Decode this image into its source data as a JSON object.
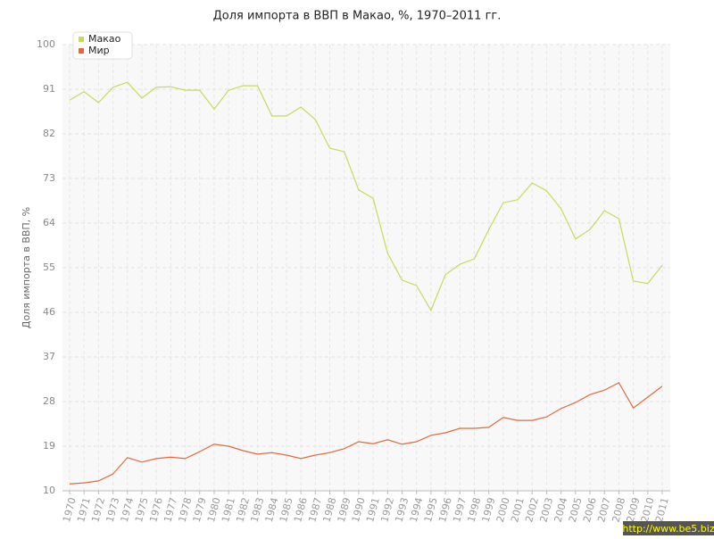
{
  "chart_data": {
    "type": "line",
    "title": "Доля импорта в ВВП в Макао, %, 1970–2011 гг.",
    "y_label": "Доля импорта в ВВП, %",
    "categories": [
      "1970",
      "1971",
      "1972",
      "1973",
      "1974",
      "1975",
      "1976",
      "1977",
      "1978",
      "1979",
      "1980",
      "1981",
      "1982",
      "1983",
      "1984",
      "1985",
      "1986",
      "1987",
      "1988",
      "1989",
      "1990",
      "1991",
      "1992",
      "1993",
      "1994",
      "1995",
      "1996",
      "1997",
      "1998",
      "1999",
      "2000",
      "2001",
      "2002",
      "2003",
      "2004",
      "2005",
      "2006",
      "2007",
      "2008",
      "2009",
      "2010",
      "2011"
    ],
    "series": [
      {
        "name": "Макао",
        "color": "#c3dc5a",
        "values": [
          88.8,
          90.5,
          88.3,
          91.4,
          92.4,
          89.2,
          91.4,
          91.5,
          90.8,
          90.8,
          87.0,
          90.8,
          91.7,
          91.7,
          85.6,
          85.6,
          87.4,
          84.9,
          79.1,
          78.4,
          70.7,
          69.0,
          57.9,
          52.5,
          51.4,
          46.4,
          53.6,
          55.7,
          56.8,
          62.7,
          68.1,
          68.7,
          72.1,
          70.5,
          66.9,
          60.8,
          62.7,
          66.5,
          64.9,
          52.3,
          51.8,
          55.5
        ]
      },
      {
        "name": "Мир",
        "color": "#e06a3c",
        "values": [
          11.4,
          11.6,
          12.0,
          13.4,
          16.7,
          15.8,
          16.5,
          16.8,
          16.5,
          17.9,
          19.4,
          19.0,
          18.1,
          17.4,
          17.7,
          17.2,
          16.5,
          17.2,
          17.7,
          18.5,
          19.9,
          19.5,
          20.3,
          19.4,
          19.9,
          21.2,
          21.7,
          22.6,
          22.6,
          22.8,
          24.8,
          24.2,
          24.2,
          24.9,
          26.6,
          27.8,
          29.4,
          30.3,
          31.8,
          26.7,
          28.9,
          31.1
        ]
      }
    ],
    "ylim": [
      10,
      100
    ],
    "yticks": [
      10,
      19,
      28,
      37,
      46,
      55,
      64,
      73,
      82,
      91,
      100
    ],
    "grid": true,
    "legend": "top-left"
  },
  "watermark": "http://www.be5.biz"
}
